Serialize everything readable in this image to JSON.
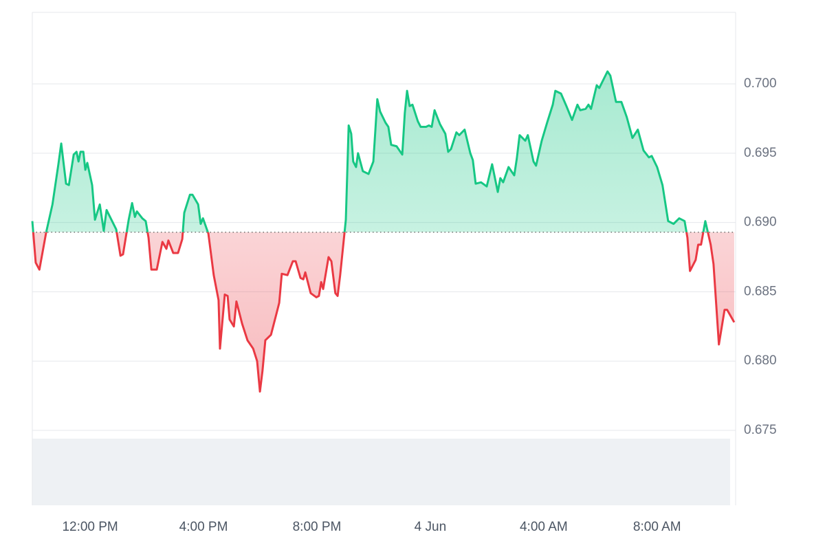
{
  "chart_data": {
    "type": "line",
    "xlim": [
      9.96,
      34.77
    ],
    "ylim": [
      0.675,
      0.70516
    ],
    "xticks": [
      {
        "value": 12,
        "label": "12:00 PM"
      },
      {
        "value": 16,
        "label": "4:00 PM"
      },
      {
        "value": 20,
        "label": "8:00 PM"
      },
      {
        "value": 24,
        "label": "4 Jun"
      },
      {
        "value": 28,
        "label": "4:00 AM"
      },
      {
        "value": 32,
        "label": "8:00 AM"
      }
    ],
    "yticks": [
      0.675,
      {
        "value": 0.68,
        "label": "0.680"
      },
      0.685,
      {
        "value": 0.69,
        "label": "0.690"
      },
      0.695,
      {
        "value": 0.7,
        "label": "0.700"
      }
    ],
    "grid": true,
    "baseline": 0.6893,
    "color_up": "#16c784",
    "color_down": "#ea3943",
    "x": [
      9.96,
      10.08,
      10.21,
      10.45,
      10.67,
      10.88,
      10.98,
      11.15,
      11.25,
      11.42,
      11.52,
      11.59,
      11.66,
      11.76,
      11.83,
      11.9,
      12.07,
      12.17,
      12.34,
      12.48,
      12.58,
      12.75,
      12.92,
      13.07,
      13.16,
      13.36,
      13.48,
      13.58,
      13.65,
      13.84,
      13.96,
      14.06,
      14.16,
      14.35,
      14.55,
      14.69,
      14.76,
      14.93,
      15.1,
      15.25,
      15.32,
      15.52,
      15.61,
      15.81,
      15.9,
      15.98,
      16.17,
      16.36,
      16.53,
      16.58,
      16.75,
      16.85,
      16.92,
      17.07,
      17.16,
      17.36,
      17.55,
      17.75,
      17.89,
      17.99,
      18.08,
      18.18,
      18.38,
      18.57,
      18.67,
      18.76,
      18.96,
      19.15,
      19.25,
      19.42,
      19.52,
      19.59,
      19.78,
      19.98,
      20.07,
      20.15,
      20.22,
      20.41,
      20.51,
      20.65,
      20.73,
      20.82,
      21.02,
      21.12,
      21.21,
      21.28,
      21.38,
      21.45,
      21.62,
      21.82,
      21.99,
      22.06,
      22.13,
      22.23,
      22.42,
      22.52,
      22.62,
      22.81,
      23.01,
      23.1,
      23.18,
      23.27,
      23.37,
      23.56,
      23.66,
      23.85,
      23.95,
      24.05,
      24.15,
      24.34,
      24.53,
      24.63,
      24.73,
      24.92,
      25.02,
      25.21,
      25.41,
      25.5,
      25.6,
      25.79,
      25.99,
      26.18,
      26.38,
      26.47,
      26.57,
      26.76,
      26.96,
      27.05,
      27.15,
      27.35,
      27.44,
      27.64,
      27.73,
      27.93,
      28.12,
      28.32,
      28.41,
      28.61,
      28.8,
      29.0,
      29.19,
      29.29,
      29.48,
      29.58,
      29.67,
      29.87,
      29.96,
      30.25,
      30.35,
      30.55,
      30.74,
      30.93,
      31.13,
      31.32,
      31.52,
      31.71,
      31.81,
      32.0,
      32.19,
      32.39,
      32.58,
      32.78,
      32.97,
      33.07,
      33.16,
      33.36,
      33.45,
      33.55,
      33.7,
      33.79,
      33.89,
      33.99,
      34.18,
      34.38,
      34.47,
      34.72
    ],
    "values": [
      0.6901,
      0.6871,
      0.6866,
      0.6893,
      0.6913,
      0.6942,
      0.6957,
      0.6928,
      0.6927,
      0.6949,
      0.6951,
      0.6944,
      0.6951,
      0.6951,
      0.6938,
      0.6943,
      0.6927,
      0.6902,
      0.6913,
      0.6894,
      0.6909,
      0.6902,
      0.6895,
      0.6876,
      0.6877,
      0.6902,
      0.6914,
      0.6904,
      0.6908,
      0.6903,
      0.6901,
      0.6889,
      0.6866,
      0.6866,
      0.6886,
      0.6881,
      0.6887,
      0.6878,
      0.6878,
      0.6888,
      0.6907,
      0.692,
      0.692,
      0.6913,
      0.6899,
      0.6903,
      0.6892,
      0.6862,
      0.6844,
      0.6809,
      0.6848,
      0.6847,
      0.683,
      0.6825,
      0.6843,
      0.6827,
      0.6815,
      0.6809,
      0.68,
      0.6778,
      0.6793,
      0.6815,
      0.6819,
      0.6834,
      0.6842,
      0.6863,
      0.6862,
      0.6872,
      0.6872,
      0.686,
      0.6859,
      0.6864,
      0.6849,
      0.6846,
      0.6847,
      0.6857,
      0.6852,
      0.6875,
      0.6872,
      0.6849,
      0.6847,
      0.6862,
      0.6902,
      0.697,
      0.6964,
      0.6944,
      0.694,
      0.695,
      0.6937,
      0.6935,
      0.6944,
      0.6966,
      0.6989,
      0.698,
      0.6972,
      0.6969,
      0.6956,
      0.6955,
      0.6949,
      0.6979,
      0.6995,
      0.6984,
      0.6985,
      0.6973,
      0.6969,
      0.6969,
      0.697,
      0.6969,
      0.6981,
      0.6971,
      0.6964,
      0.6951,
      0.6953,
      0.6965,
      0.6963,
      0.6967,
      0.695,
      0.6945,
      0.6928,
      0.6929,
      0.6926,
      0.6942,
      0.6922,
      0.6932,
      0.6929,
      0.694,
      0.6934,
      0.6946,
      0.6963,
      0.6959,
      0.6963,
      0.6944,
      0.6941,
      0.6959,
      0.6972,
      0.6985,
      0.6995,
      0.6993,
      0.6984,
      0.6974,
      0.6985,
      0.6981,
      0.6982,
      0.6985,
      0.6982,
      0.6999,
      0.6997,
      0.7009,
      0.7006,
      0.6987,
      0.6987,
      0.6976,
      0.6961,
      0.6967,
      0.6952,
      0.6947,
      0.6948,
      0.694,
      0.6927,
      0.6901,
      0.6899,
      0.6903,
      0.6901,
      0.6889,
      0.6865,
      0.6873,
      0.6884,
      0.6884,
      0.6901,
      0.6893,
      0.6884,
      0.687,
      0.6812,
      0.6837,
      0.6837,
      0.6828
    ]
  }
}
